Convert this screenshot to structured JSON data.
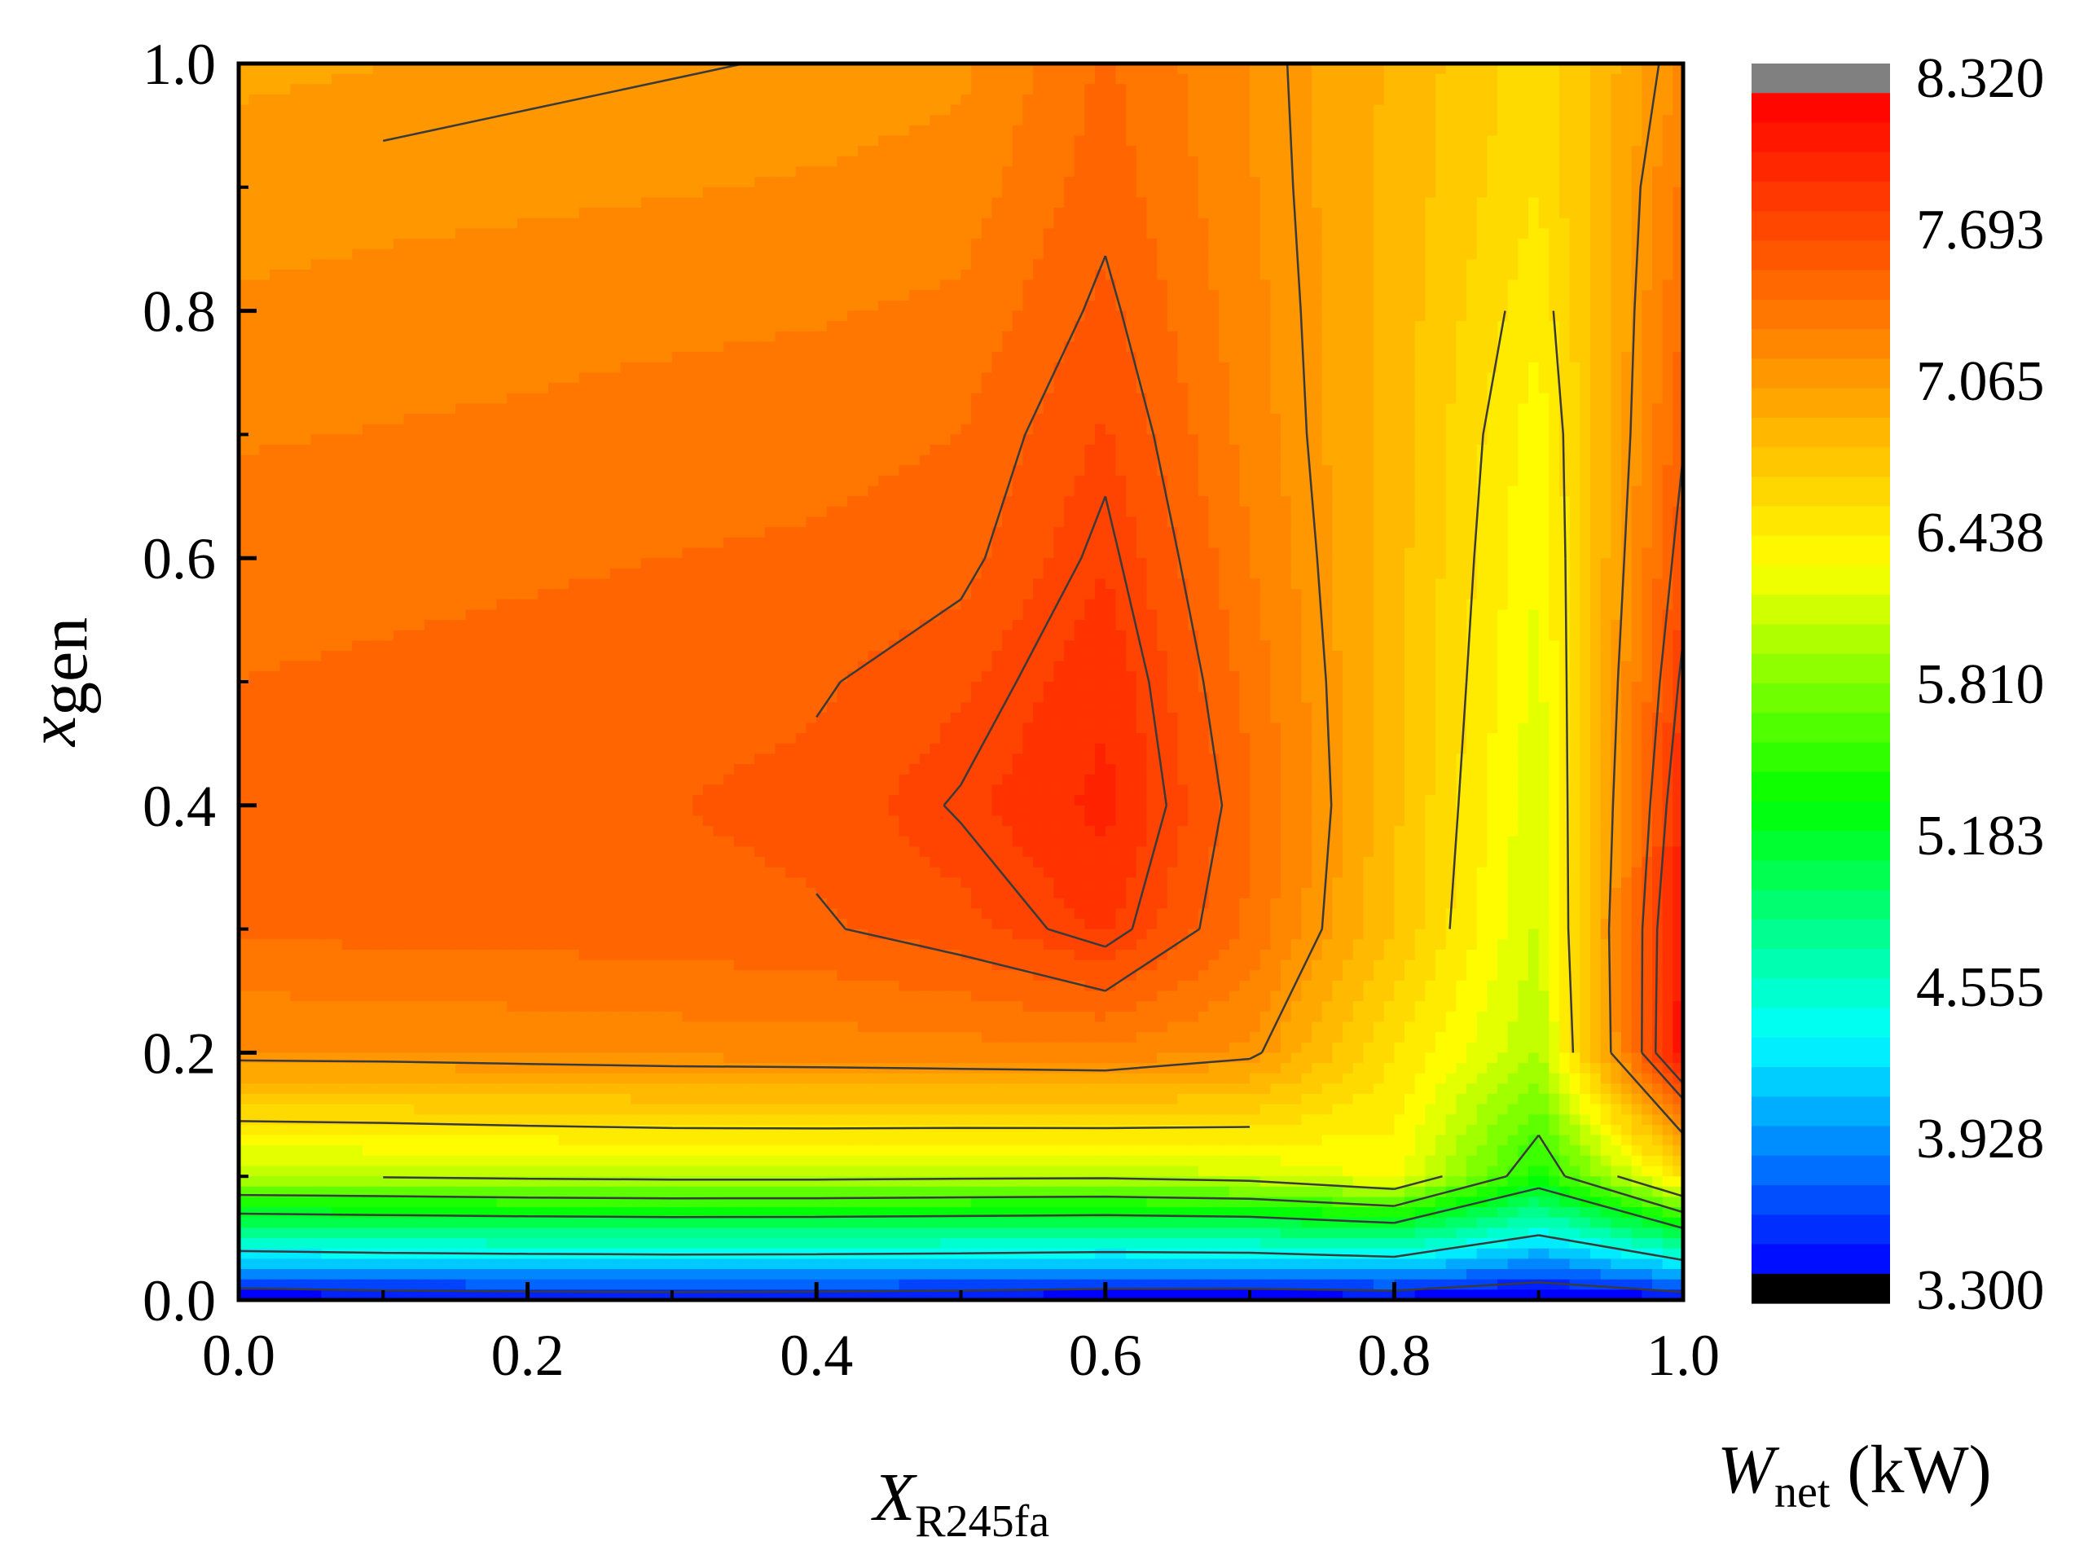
{
  "chart_data": {
    "type": "heatmap",
    "subtype": "filled-contour",
    "x_axis": {
      "label_main": "X",
      "label_sub": "R245fa",
      "range": [
        0.0,
        1.0
      ],
      "ticks": [
        "0.0",
        "0.2",
        "0.4",
        "0.6",
        "0.8",
        "1.0"
      ]
    },
    "y_axis": {
      "label_main": "x",
      "label_sub": "gen",
      "range": [
        0.0,
        1.0
      ],
      "ticks": [
        "0.0",
        "0.2",
        "0.4",
        "0.6",
        "0.8",
        "1.0"
      ]
    },
    "colorbar": {
      "label_main": "W",
      "label_sub": "net",
      "label_unit": " (kW)",
      "range": [
        3.3,
        8.32
      ],
      "ticks": [
        "3.300",
        "3.928",
        "4.555",
        "5.183",
        "5.810",
        "6.438",
        "7.065",
        "7.693",
        "8.320"
      ],
      "colors": [
        "#000000",
        "#0000ff",
        "#00ffff",
        "#00ff00",
        "#ffff00",
        "#ff8000",
        "#ff0000",
        "#808080"
      ],
      "position": "right"
    },
    "x": [
      0.0,
      0.1,
      0.2,
      0.3,
      0.4,
      0.5,
      0.6,
      0.7,
      0.8,
      0.9,
      1.0
    ],
    "y": [
      0.0,
      0.1,
      0.2,
      0.3,
      0.4,
      0.5,
      0.6,
      0.7,
      0.8,
      0.9,
      1.0
    ],
    "z": [
      [
        3.35,
        3.4,
        3.42,
        3.43,
        3.42,
        3.4,
        3.36,
        3.35,
        3.38,
        3.3,
        3.4
      ],
      [
        6.0,
        6.02,
        6.05,
        6.07,
        6.07,
        6.05,
        6.04,
        6.1,
        6.3,
        5.4,
        6.5
      ],
      [
        7.12,
        7.13,
        7.15,
        7.17,
        7.18,
        7.2,
        7.22,
        7.1,
        6.5,
        6.0,
        8.1
      ],
      [
        7.4,
        7.42,
        7.43,
        7.45,
        7.48,
        7.58,
        7.78,
        7.35,
        6.75,
        6.1,
        8.05
      ],
      [
        7.45,
        7.47,
        7.48,
        7.5,
        7.55,
        7.72,
        7.92,
        7.4,
        6.78,
        6.15,
        7.9
      ],
      [
        7.38,
        7.4,
        7.42,
        7.44,
        7.48,
        7.6,
        7.86,
        7.33,
        6.8,
        6.2,
        7.75
      ],
      [
        7.32,
        7.34,
        7.36,
        7.38,
        7.4,
        7.45,
        7.75,
        7.26,
        6.81,
        6.25,
        7.6
      ],
      [
        7.24,
        7.26,
        7.28,
        7.31,
        7.33,
        7.38,
        7.65,
        7.2,
        6.82,
        6.3,
        7.48
      ],
      [
        7.15,
        7.18,
        7.2,
        7.22,
        7.24,
        7.28,
        7.54,
        7.17,
        6.83,
        6.4,
        7.38
      ],
      [
        7.05,
        7.08,
        7.1,
        7.12,
        7.14,
        7.18,
        7.45,
        7.14,
        6.84,
        6.5,
        7.28
      ],
      [
        6.98,
        7.0,
        7.02,
        7.04,
        7.06,
        7.1,
        7.4,
        7.12,
        6.85,
        6.55,
        7.15
      ]
    ],
    "contour_levels": [
      3.6,
      4.4,
      5.2,
      5.6,
      6.0,
      6.5,
      7.05,
      7.5,
      7.7
    ]
  }
}
